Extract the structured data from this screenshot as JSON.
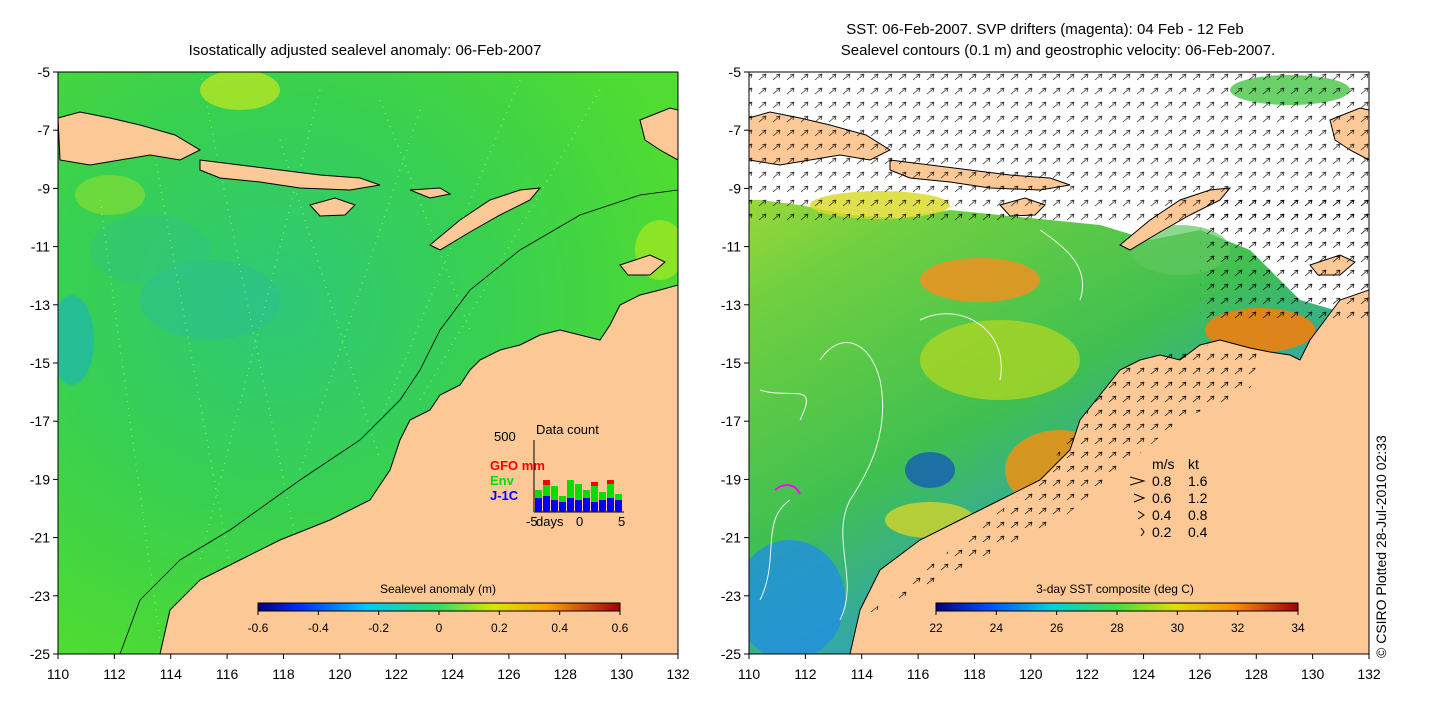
{
  "left_panel": {
    "title": "Isostatically adjusted sealevel anomaly: 06-Feb-2007",
    "y_ticks": [
      "-5",
      "-7",
      "-9",
      "-11",
      "-13",
      "-15",
      "-17",
      "-19",
      "-21",
      "-23",
      "-25"
    ],
    "x_ticks": [
      "110",
      "112",
      "114",
      "116",
      "118",
      "120",
      "122",
      "124",
      "126",
      "128",
      "130",
      "132"
    ],
    "colorbar": {
      "label": "Sealevel anomaly (m)",
      "ticks": [
        "-0.6",
        "-0.4",
        "-0.2",
        "0",
        "0.2",
        "0.4",
        "0.6"
      ],
      "range": [
        -0.6,
        0.6
      ]
    },
    "data_count": {
      "title": "Data count",
      "y_max_label": "500",
      "legend": [
        {
          "name": "GFO mm",
          "color": "#ff0000"
        },
        {
          "name": "Env",
          "color": "#00e000"
        },
        {
          "name": "J-1C",
          "color": "#0000ff"
        }
      ],
      "x_label": "days",
      "x_ticks": [
        "-5",
        "0",
        "5"
      ]
    }
  },
  "right_panel": {
    "title_line1": "SST: 06-Feb-2007. SVP drifters (magenta): 04 Feb - 12 Feb",
    "title_line2": "Sealevel contours (0.1 m) and geostrophic velocity: 06-Feb-2007.",
    "y_ticks": [
      "-5",
      "-7",
      "-9",
      "-11",
      "-13",
      "-15",
      "-17",
      "-19",
      "-21",
      "-23",
      "-25"
    ],
    "x_ticks": [
      "110",
      "112",
      "114",
      "116",
      "118",
      "120",
      "122",
      "124",
      "126",
      "128",
      "130",
      "132"
    ],
    "colorbar": {
      "label": "3-day SST composite (deg C)",
      "ticks": [
        "22",
        "24",
        "26",
        "28",
        "30",
        "32",
        "34"
      ],
      "range": [
        22,
        34
      ]
    },
    "velocity_legend": {
      "header_ms": "m/s",
      "header_kt": "kt",
      "rows": [
        {
          "ms": "0.8",
          "kt": "1.6"
        },
        {
          "ms": "0.6",
          "kt": "1.2"
        },
        {
          "ms": "0.4",
          "kt": "0.8"
        },
        {
          "ms": "0.2",
          "kt": "0.4"
        }
      ]
    }
  },
  "credit": "© CSIRO Plotted 28-Jul-2010 02:33",
  "colors": {
    "land": "#fcc896",
    "sea_green": "#3fd63f",
    "warm_orange": "#f08c10",
    "cool_blue": "#2080e0"
  }
}
